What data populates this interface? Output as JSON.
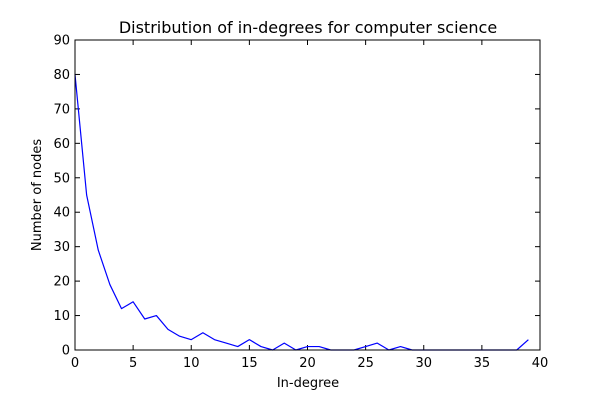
{
  "chart_data": {
    "type": "line",
    "title": "Distribution of in-degrees for computer science",
    "xlabel": "In-degree",
    "ylabel": "Number of nodes",
    "xlim": [
      0,
      40
    ],
    "ylim": [
      0,
      90
    ],
    "xticks": [
      0,
      5,
      10,
      15,
      20,
      25,
      30,
      35,
      40
    ],
    "yticks": [
      0,
      10,
      20,
      30,
      40,
      50,
      60,
      70,
      80,
      90
    ],
    "grid": false,
    "line_color": "#0000ff",
    "series": [
      {
        "x": [
          0,
          1,
          2,
          3,
          4,
          5,
          6,
          7,
          8,
          9,
          10,
          11,
          12,
          13,
          14,
          15,
          16,
          17,
          18,
          19,
          20,
          21,
          22,
          23,
          24,
          25,
          26,
          27,
          28,
          29,
          30,
          31,
          32,
          33,
          34,
          35,
          36,
          37,
          38,
          39
        ],
        "y": [
          80,
          45,
          29,
          19,
          12,
          14,
          9,
          10,
          6,
          4,
          3,
          5,
          3,
          2,
          1,
          3,
          1,
          0,
          2,
          0,
          1,
          1,
          0,
          0,
          0,
          1,
          2,
          0,
          1,
          0,
          0,
          0,
          0,
          0,
          0,
          0,
          0,
          0,
          0,
          3
        ]
      }
    ]
  }
}
